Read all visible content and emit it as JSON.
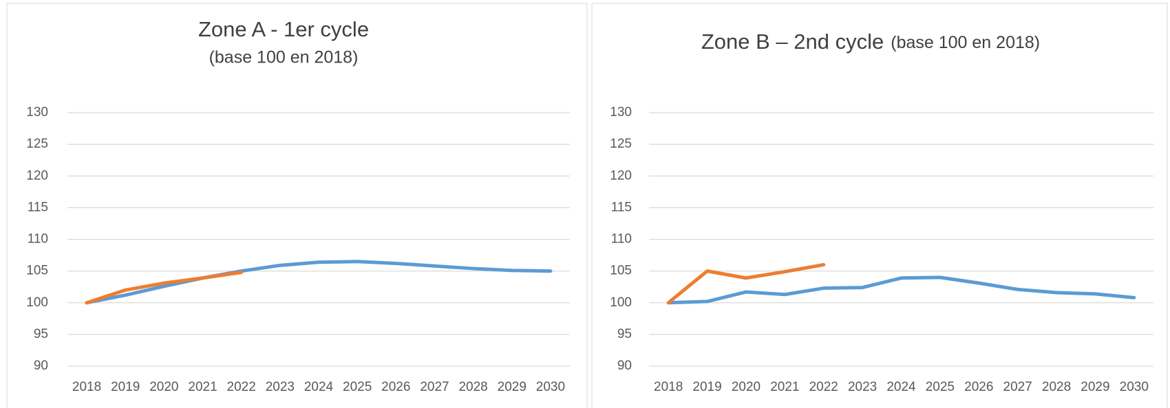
{
  "chart_data": [
    {
      "type": "line",
      "title": "Zone A - 1er cycle",
      "subtitle": "(base 100 en 2018)",
      "categories": [
        "2018",
        "2019",
        "2020",
        "2021",
        "2022",
        "2023",
        "2024",
        "2025",
        "2026",
        "2027",
        "2028",
        "2029",
        "2030"
      ],
      "series": [
        {
          "color": "#5b9bd5",
          "values": [
            100,
            101.2,
            102.6,
            103.9,
            105.0,
            105.9,
            106.4,
            106.5,
            106.2,
            105.8,
            105.4,
            105.1,
            105.0
          ]
        },
        {
          "color": "#ed7d31",
          "values": [
            100,
            102.0,
            103.1,
            103.9,
            104.8,
            null,
            null,
            null,
            null,
            null,
            null,
            null,
            null
          ]
        }
      ],
      "ylim": [
        90,
        130
      ],
      "yticks": [
        90,
        95,
        100,
        105,
        110,
        115,
        120,
        125,
        130
      ],
      "grid": true
    },
    {
      "type": "line",
      "title": "Zone B – 2nd cycle",
      "subtitle": "(base 100 en 2018)",
      "categories": [
        "2018",
        "2019",
        "2020",
        "2021",
        "2022",
        "2023",
        "2024",
        "2025",
        "2026",
        "2027",
        "2028",
        "2029",
        "2030"
      ],
      "series": [
        {
          "color": "#5b9bd5",
          "values": [
            100,
            100.2,
            101.7,
            101.3,
            102.3,
            102.4,
            103.9,
            104.0,
            103.1,
            102.1,
            101.6,
            101.4,
            100.8
          ]
        },
        {
          "color": "#ed7d31",
          "values": [
            100,
            105.0,
            103.9,
            104.9,
            106.0,
            null,
            null,
            null,
            null,
            null,
            null,
            null,
            null
          ]
        }
      ],
      "ylim": [
        90,
        130
      ],
      "yticks": [
        90,
        95,
        100,
        105,
        110,
        115,
        120,
        125,
        130
      ],
      "grid": true
    }
  ]
}
